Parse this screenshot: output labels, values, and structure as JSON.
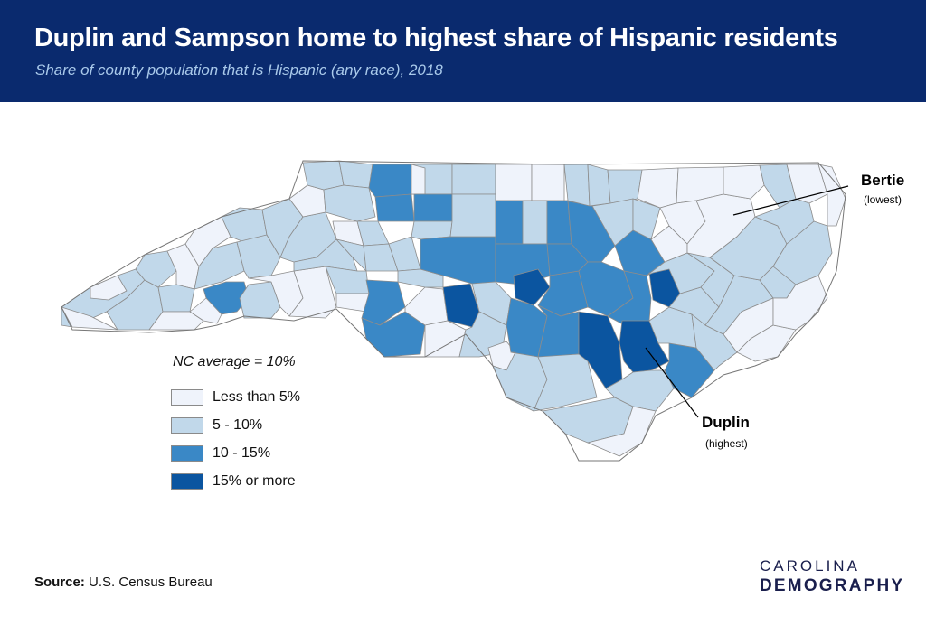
{
  "header": {
    "title": "Duplin and Sampson home to highest share of Hispanic residents",
    "subtitle": "Share of county population that is Hispanic (any race), 2018"
  },
  "legend": {
    "title": "NC average = 10%",
    "items": [
      {
        "label": "Less than 5%",
        "color": "#eff3fb"
      },
      {
        "label": "5 - 10%",
        "color": "#c1d8ea"
      },
      {
        "label": "10 - 15%",
        "color": "#3a88c6"
      },
      {
        "label": "15% or more",
        "color": "#0b55a0"
      }
    ]
  },
  "annotations": {
    "bertie": {
      "name": "Bertie",
      "note": "(lowest)"
    },
    "duplin": {
      "name": "Duplin",
      "note": "(highest)"
    }
  },
  "source": {
    "label": "Source:",
    "text": "U.S. Census Bureau"
  },
  "branding": {
    "line1": "CAROLINA",
    "line2": "DEMOGRAPHY"
  },
  "colors": {
    "header_bg": "#0a2a6e",
    "county_stroke": "#8c8c8c",
    "leader_line": "#000000"
  }
}
